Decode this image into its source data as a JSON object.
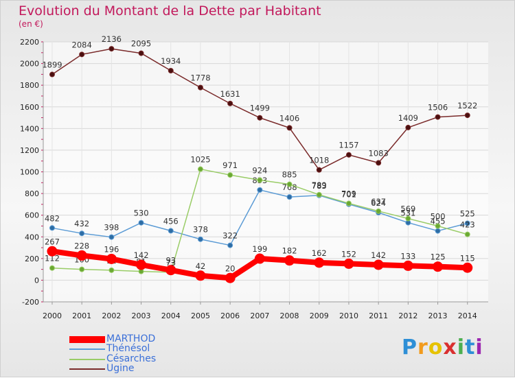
{
  "title": "Evolution du Montant de la Dette par Habitant",
  "unit": "(en €)",
  "logo": "Proxiti",
  "chart_data": {
    "type": "line",
    "title": "Evolution du Montant de la Dette par Habitant",
    "ylabel": "(en €)",
    "x": [
      "2000",
      "2001",
      "2002",
      "2003",
      "2004",
      "2005",
      "2006",
      "2007",
      "2008",
      "2009",
      "2010",
      "2011",
      "2012",
      "2013",
      "2014"
    ],
    "ylim": [
      -200,
      2200
    ],
    "yticks": [
      -200,
      0,
      200,
      400,
      600,
      800,
      1000,
      1200,
      1400,
      1600,
      1800,
      2000,
      2200
    ],
    "grid": true,
    "legend": "bottom-left",
    "series": [
      {
        "name": "MARTHOD",
        "color": "#ff0000",
        "values": [
          267,
          228,
          196,
          142,
          93,
          42,
          20,
          199,
          182,
          162,
          152,
          142,
          133,
          125,
          115
        ]
      },
      {
        "name": "Thénésol",
        "color": "#5b9bd5",
        "values": [
          482,
          432,
          398,
          530,
          456,
          378,
          322,
          833,
          768,
          783,
          701,
          624,
          531,
          455,
          525
        ]
      },
      {
        "name": "Césarches",
        "color": "#99cc66",
        "values": [
          112,
          100,
          92,
          81,
          73,
          1025,
          971,
          924,
          885,
          789,
          709,
          637,
          569,
          500,
          423
        ]
      },
      {
        "name": "Ugine",
        "color": "#7a2a2a",
        "values": [
          1899,
          2084,
          2136,
          2095,
          1934,
          1778,
          1631,
          1499,
          1406,
          1018,
          1157,
          1083,
          1409,
          1506,
          1522
        ]
      }
    ]
  }
}
